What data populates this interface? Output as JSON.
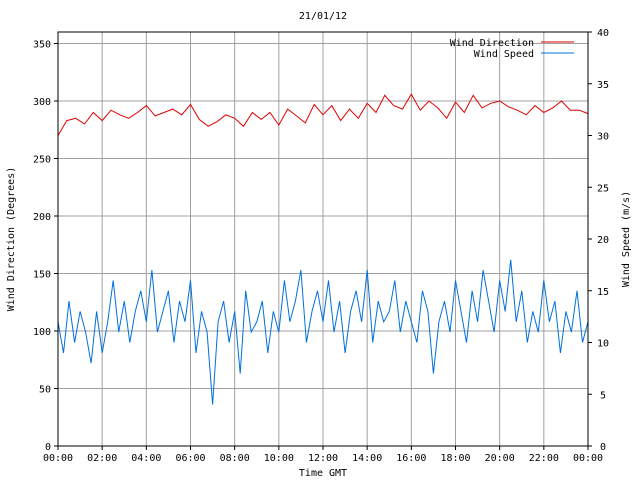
{
  "chart_data": {
    "type": "line",
    "title": "21/01/12",
    "xlabel": "Time GMT",
    "ylabel_left": "Wind Direction (Degrees)",
    "ylabel_right": "Wind Speed (m/s)",
    "x_range_hours": [
      0,
      24
    ],
    "x_ticks": [
      "00:00",
      "02:00",
      "04:00",
      "06:00",
      "08:00",
      "10:00",
      "12:00",
      "14:00",
      "16:00",
      "18:00",
      "20:00",
      "22:00",
      "00:00"
    ],
    "ylim_left": [
      0,
      360
    ],
    "y_ticks_left": [
      0,
      50,
      100,
      150,
      200,
      250,
      300,
      350
    ],
    "ylim_right": [
      0,
      40
    ],
    "y_ticks_right": [
      0,
      5,
      10,
      15,
      20,
      25,
      30,
      35,
      40
    ],
    "grid": true,
    "legend_position": "top-right",
    "colors": {
      "direction": "#e00000",
      "speed": "#0070e0",
      "grid": "#a0a0a0",
      "axis": "#000000"
    },
    "series": [
      {
        "name": "Wind Direction",
        "axis": "left",
        "x_hours": [
          0,
          0.4,
          0.8,
          1.2,
          1.6,
          2,
          2.4,
          2.8,
          3.2,
          3.6,
          4,
          4.4,
          4.8,
          5.2,
          5.6,
          6,
          6.4,
          6.8,
          7.2,
          7.6,
          8,
          8.4,
          8.8,
          9.2,
          9.6,
          10,
          10.4,
          10.8,
          11.2,
          11.6,
          12,
          12.4,
          12.8,
          13.2,
          13.6,
          14,
          14.4,
          14.8,
          15.2,
          15.6,
          16,
          16.4,
          16.8,
          17.2,
          17.6,
          18,
          18.4,
          18.8,
          19.2,
          19.6,
          20,
          20.4,
          20.8,
          21.2,
          21.6,
          22,
          22.4,
          22.8,
          23.2,
          23.6,
          24
        ],
        "values": [
          270,
          283,
          285,
          280,
          290,
          283,
          292,
          288,
          285,
          290,
          296,
          287,
          290,
          293,
          288,
          297,
          284,
          278,
          282,
          288,
          285,
          278,
          290,
          284,
          290,
          279,
          293,
          287,
          281,
          297,
          288,
          296,
          283,
          293,
          285,
          298,
          290,
          305,
          296,
          293,
          306,
          292,
          300,
          294,
          285,
          299,
          290,
          305,
          294,
          298,
          300,
          295,
          292,
          288,
          296,
          290,
          294,
          300,
          292,
          292,
          289
        ]
      },
      {
        "name": "Wind Speed",
        "axis": "right",
        "x_hours": [
          0,
          0.25,
          0.5,
          0.75,
          1,
          1.25,
          1.5,
          1.75,
          2,
          2.25,
          2.5,
          2.75,
          3,
          3.25,
          3.5,
          3.75,
          4,
          4.25,
          4.5,
          4.75,
          5,
          5.25,
          5.5,
          5.75,
          6,
          6.25,
          6.5,
          6.75,
          7,
          7.25,
          7.5,
          7.75,
          8,
          8.25,
          8.5,
          8.75,
          9,
          9.25,
          9.5,
          9.75,
          10,
          10.25,
          10.5,
          10.75,
          11,
          11.25,
          11.5,
          11.75,
          12,
          12.25,
          12.5,
          12.75,
          13,
          13.25,
          13.5,
          13.75,
          14,
          14.25,
          14.5,
          14.75,
          15,
          15.25,
          15.5,
          15.75,
          16,
          16.25,
          16.5,
          16.75,
          17,
          17.25,
          17.5,
          17.75,
          18,
          18.25,
          18.5,
          18.75,
          19,
          19.25,
          19.5,
          19.75,
          20,
          20.25,
          20.5,
          20.75,
          21,
          21.25,
          21.5,
          21.75,
          22,
          22.25,
          22.5,
          22.75,
          23,
          23.25,
          23.5,
          23.75,
          24
        ],
        "values": [
          12,
          9,
          14,
          10,
          13,
          11,
          8,
          13,
          9,
          12,
          16,
          11,
          14,
          10,
          13,
          15,
          12,
          17,
          11,
          13,
          15,
          10,
          14,
          12,
          16,
          9,
          13,
          11,
          4,
          12,
          14,
          10,
          13,
          7,
          15,
          11,
          12,
          14,
          9,
          13,
          11,
          16,
          12,
          14,
          17,
          10,
          13,
          15,
          12,
          16,
          11,
          14,
          9,
          13,
          15,
          12,
          17,
          10,
          14,
          12,
          13,
          16,
          11,
          14,
          12,
          10,
          15,
          13,
          7,
          12,
          14,
          11,
          16,
          13,
          10,
          15,
          12,
          17,
          14,
          11,
          16,
          13,
          18,
          12,
          15,
          10,
          13,
          11,
          16,
          12,
          14,
          9,
          13,
          11,
          15,
          10,
          12
        ]
      }
    ]
  }
}
